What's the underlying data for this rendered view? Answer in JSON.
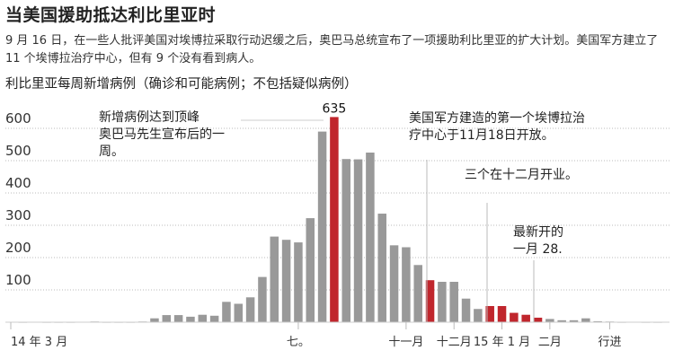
{
  "title": "当美国援助抵达利比里亚时",
  "description": "9 月 16 日，在一些人批评美国对埃博拉采取行动迟缓之后，奥巴马总统宣布了一项援助利比里亚的扩大计划。美国军方建立了 11 个埃博拉治疗中心，但有 9 个没有看到病人。",
  "chart_data": {
    "type": "bar",
    "title": "利比里亚每周新增病例（确诊和可能病例；不包括疑似病例）",
    "ylim": [
      0,
      650
    ],
    "yticks": [
      100,
      200,
      300,
      400,
      500,
      600
    ],
    "ytick_labels": [
      "100",
      "200",
      "300",
      "400",
      "500",
      "600"
    ],
    "grid": true,
    "colors": {
      "default": "#999999",
      "highlight": "#c0262d"
    },
    "values": [
      1,
      0,
      1,
      0,
      0,
      0,
      1,
      2,
      0,
      0,
      0,
      2,
      12,
      22,
      22,
      17,
      23,
      20,
      63,
      57,
      77,
      140,
      265,
      255,
      247,
      322,
      590,
      635,
      505,
      504,
      525,
      336,
      238,
      232,
      177,
      130,
      125,
      125,
      73,
      41,
      50,
      50,
      29,
      23,
      14,
      10,
      6,
      6,
      12,
      3,
      2,
      0,
      1,
      0,
      0
    ],
    "highlighted": [
      27,
      35,
      40,
      41,
      42,
      43,
      44
    ],
    "peak_label": "635",
    "xtick_labels": [
      {
        "label": "14 年 3 月",
        "index": 0
      },
      {
        "label": "七。",
        "index": 24
      },
      {
        "label": "十一月",
        "index": 33
      },
      {
        "label": "十二月",
        "index": 37
      },
      {
        "label": "15 年 1 月",
        "index": 41
      },
      {
        "label": "二月",
        "index": 45
      },
      {
        "label": "行进",
        "index": 50
      }
    ],
    "annotations": [
      {
        "lines": [
          "新增病例达到顶峰",
          "奥巴马先生宣布后的一",
          "周。"
        ]
      },
      {
        "lines": [
          "美国军方建造的第一个埃博拉治",
          "疗中心于11月18日开放。"
        ]
      },
      {
        "lines": [
          "三个在十二月开业。"
        ]
      },
      {
        "lines": [
          "最新开的",
          "一月 28."
        ]
      }
    ]
  }
}
